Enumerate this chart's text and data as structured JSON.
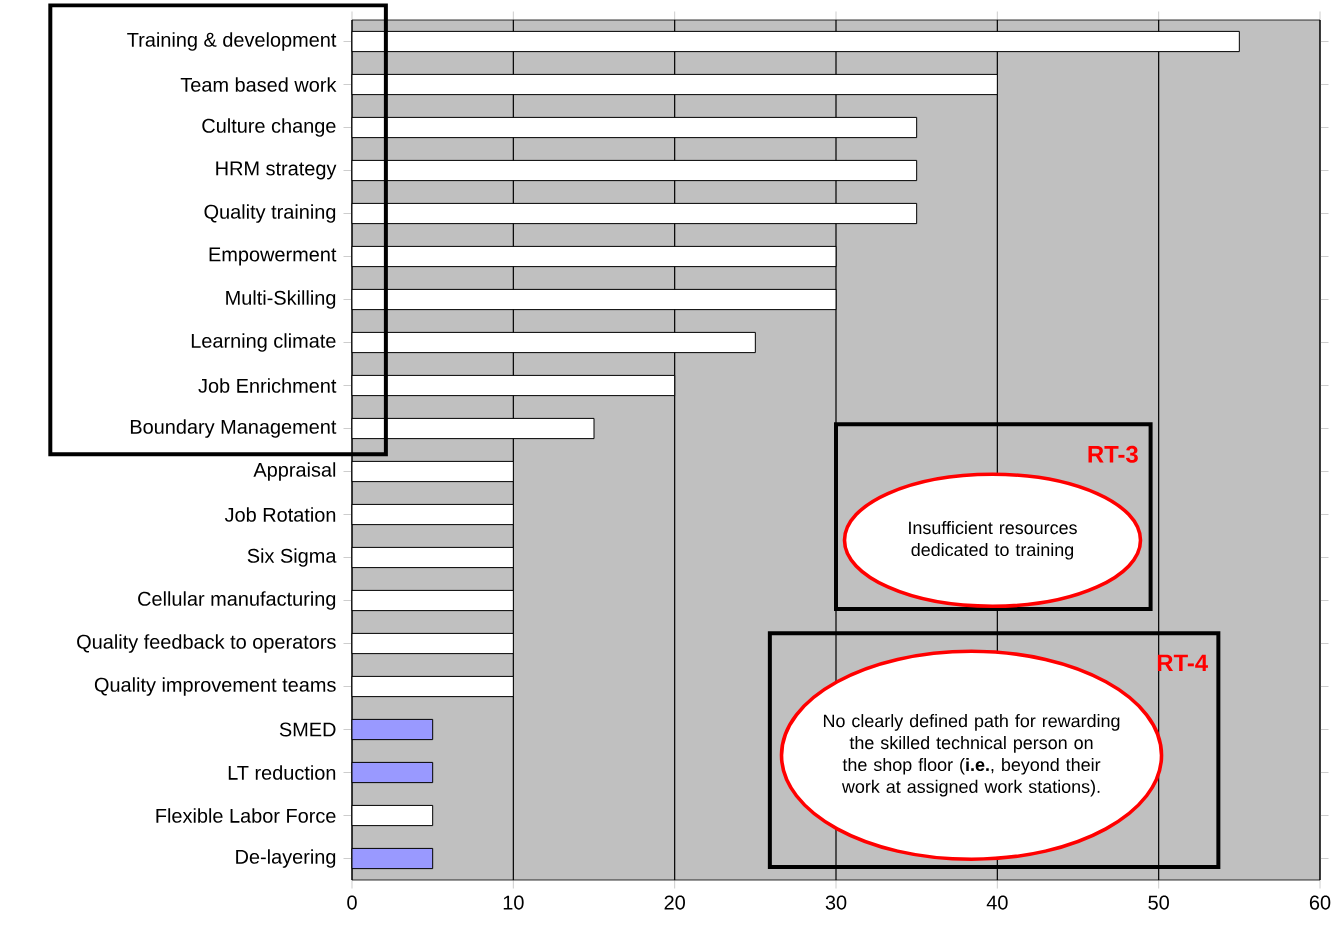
{
  "chart_data": {
    "type": "bar",
    "orientation": "horizontal",
    "categories": [
      "Training & development",
      "Team based work",
      "Culture change",
      "HRM strategy",
      "Quality training",
      "Empowerment",
      "Multi-Skilling",
      "Learning climate",
      "Job Enrichment",
      "Boundary Management",
      "Appraisal",
      "Job Rotation",
      "Six Sigma",
      "Cellular manufacturing",
      "Quality feedback to operators",
      "Quality improvement teams",
      "SMED",
      "LT reduction",
      "Flexible Labor Force",
      "De-layering"
    ],
    "values": [
      55,
      40,
      35,
      35,
      35,
      30,
      30,
      25,
      20,
      15,
      10,
      10,
      10,
      10,
      10,
      10,
      5,
      5,
      5,
      5
    ],
    "colors": [
      "#ffffff",
      "#ffffff",
      "#ffffff",
      "#ffffff",
      "#ffffff",
      "#ffffff",
      "#ffffff",
      "#ffffff",
      "#ffffff",
      "#ffffff",
      "#ffffff",
      "#ffffff",
      "#ffffff",
      "#ffffff",
      "#ffffff",
      "#ffffff",
      "#9999ff",
      "#9999ff",
      "#ffffff",
      "#9999ff"
    ],
    "xlim": [
      0,
      60
    ],
    "xticks": [
      0,
      10,
      20,
      30,
      40,
      50,
      60
    ],
    "grid": "x",
    "annotations": [
      "RT-3",
      "Insufficient resources dedicated to training",
      "RT-4",
      "No clearly defined path for rewarding the skilled technical person on the shop floor (**i.e.**, beyond their work at assigned work stations)."
    ]
  }
}
